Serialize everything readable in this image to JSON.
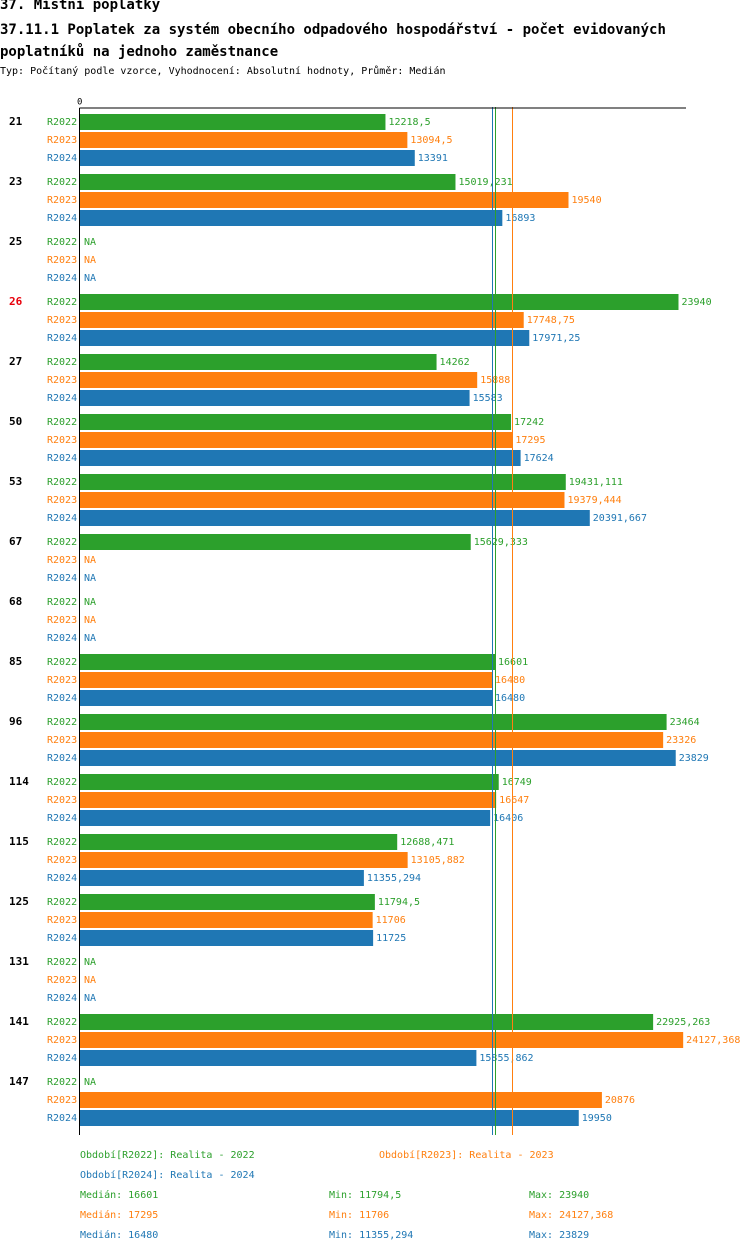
{
  "header": {
    "section_title": "37. Místní poplatky",
    "chart_title": "37.11.1 Poplatek za systém obecního odpadového hospodářství - počet evidovaných poplatníků na jednoho zaměstnance",
    "subtitle": "Typ: Počítaný podle vzorce, Vyhodnocení: Absolutní hodnoty, Průměr: Medián"
  },
  "colors": {
    "R2022": "#2ca02c",
    "R2023": "#ff7f0e",
    "R2024": "#1f77b4",
    "highlight": "#e8000b",
    "axis": "#000000"
  },
  "chart_data": {
    "type": "bar",
    "orientation": "horizontal",
    "axis_zero_label": "0",
    "xlim": [
      0,
      25000
    ],
    "series_names": [
      "R2022",
      "R2023",
      "R2024"
    ],
    "na_label": "NA",
    "highlight_category": "26",
    "groups": [
      {
        "category": "21",
        "values": [
          12218.5,
          13094.5,
          13391
        ],
        "labels": [
          "12218,5",
          "13094,5",
          "13391"
        ]
      },
      {
        "category": "23",
        "values": [
          15019.231,
          19540,
          16893
        ],
        "labels": [
          "15019,231",
          "19540",
          "16893"
        ]
      },
      {
        "category": "25",
        "values": [
          null,
          null,
          null
        ],
        "labels": [
          "NA",
          "NA",
          "NA"
        ]
      },
      {
        "category": "26",
        "values": [
          23940,
          17748.75,
          17971.25
        ],
        "labels": [
          "23940",
          "17748,75",
          "17971,25"
        ]
      },
      {
        "category": "27",
        "values": [
          14262,
          15888,
          15583
        ],
        "labels": [
          "14262",
          "15888",
          "15583"
        ]
      },
      {
        "category": "50",
        "values": [
          17242,
          17295,
          17624
        ],
        "labels": [
          "17242",
          "17295",
          "17624"
        ]
      },
      {
        "category": "53",
        "values": [
          19431.111,
          19379.444,
          20391.667
        ],
        "labels": [
          "19431,111",
          "19379,444",
          "20391,667"
        ]
      },
      {
        "category": "67",
        "values": [
          15629.333,
          null,
          null
        ],
        "labels": [
          "15629,333",
          "NA",
          "NA"
        ]
      },
      {
        "category": "68",
        "values": [
          null,
          null,
          null
        ],
        "labels": [
          "NA",
          "NA",
          "NA"
        ]
      },
      {
        "category": "85",
        "values": [
          16601,
          16480,
          16480
        ],
        "labels": [
          "16601",
          "16480",
          "16480"
        ]
      },
      {
        "category": "96",
        "values": [
          23464,
          23326,
          23829
        ],
        "labels": [
          "23464",
          "23326",
          "23829"
        ]
      },
      {
        "category": "114",
        "values": [
          16749,
          16647,
          16406
        ],
        "labels": [
          "16749",
          "16647",
          "16406"
        ]
      },
      {
        "category": "115",
        "values": [
          12688.471,
          13105.882,
          11355.294
        ],
        "labels": [
          "12688,471",
          "13105,882",
          "11355,294"
        ]
      },
      {
        "category": "125",
        "values": [
          11794.5,
          11706,
          11725
        ],
        "labels": [
          "11794,5",
          "11706",
          "11725"
        ]
      },
      {
        "category": "131",
        "values": [
          null,
          null,
          null
        ],
        "labels": [
          "NA",
          "NA",
          "NA"
        ]
      },
      {
        "category": "141",
        "values": [
          22925.263,
          24127.368,
          15855.862
        ],
        "labels": [
          "22925,263",
          "24127,368",
          "15855,862"
        ]
      },
      {
        "category": "147",
        "values": [
          null,
          20876,
          19950
        ],
        "labels": [
          "NA",
          "20876",
          "19950"
        ]
      }
    ],
    "median_lines": [
      {
        "series": "R2022",
        "value": 16601
      },
      {
        "series": "R2023",
        "value": 17295
      },
      {
        "series": "R2024",
        "value": 16480
      }
    ]
  },
  "legend": {
    "periods": [
      {
        "series": "R2022",
        "text": "Období[R2022]: Realita - 2022"
      },
      {
        "series": "R2023",
        "text": "Období[R2023]: Realita - 2023"
      },
      {
        "series": "R2024",
        "text": "Období[R2024]: Realita - 2024"
      }
    ],
    "stats": [
      {
        "series": "R2022",
        "median": "Medián: 16601",
        "min": "Min: 11794,5",
        "max": "Max: 23940"
      },
      {
        "series": "R2023",
        "median": "Medián: 17295",
        "min": "Min: 11706",
        "max": "Max: 24127,368"
      },
      {
        "series": "R2024",
        "median": "Medián: 16480",
        "min": "Min: 11355,294",
        "max": "Max: 23829"
      }
    ]
  }
}
